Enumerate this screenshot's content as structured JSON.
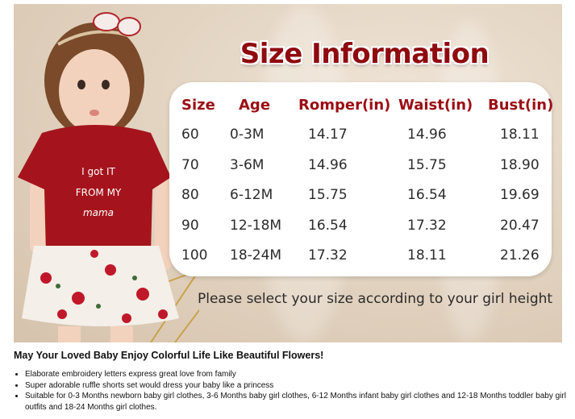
{
  "banner": {
    "title": "Size Information",
    "shirt_text": [
      "I got IT",
      "FROM MY",
      "mama"
    ],
    "table": {
      "headers": [
        "Size",
        "Age",
        "Romper(in)",
        "Waist(in)",
        "Bust(in)"
      ],
      "rows": [
        [
          "60",
          "0-3M",
          "14.17",
          "14.96",
          "18.11"
        ],
        [
          "70",
          "3-6M",
          "14.96",
          "15.75",
          "18.90"
        ],
        [
          "80",
          "6-12M",
          "15.75",
          "16.54",
          "19.69"
        ],
        [
          "90",
          "12-18M",
          "16.54",
          "17.32",
          "20.47"
        ],
        [
          "100",
          "18-24M",
          "17.32",
          "18.11",
          "21.26"
        ]
      ]
    },
    "note": "Please select your size according to your girl height",
    "colors": {
      "title": "#8f0a0f",
      "header": "#9b0d14",
      "shirt": "#a5141c"
    }
  },
  "description": {
    "heading": "May Your Loved Baby Enjoy Colorful Life Like Beautiful Flowers!",
    "bullets": [
      "Elaborate embroidery letters express great love from family",
      "Super adorable ruffle shorts set would dress your baby like a princess",
      "Suitable for 0-3 Months newborn baby girl clothes, 3-6 Months baby girl clothes, 6-12 Months infant baby girl clothes and 12-18 Months toddler baby girl outfits and 18-24 Months girl clothes."
    ]
  }
}
